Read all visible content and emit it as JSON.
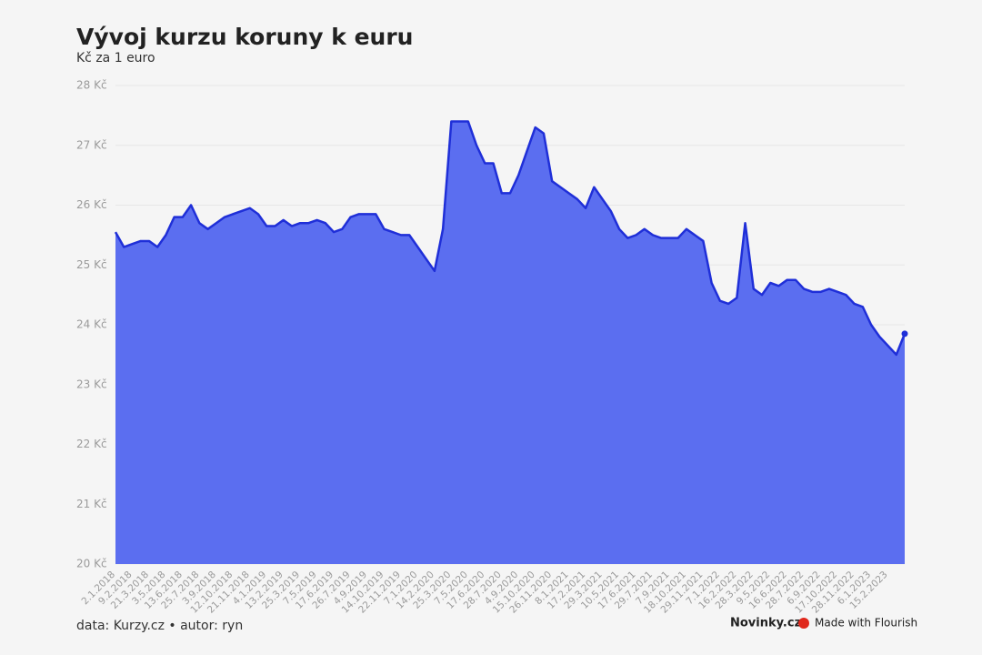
{
  "chart_data": {
    "type": "area",
    "title": "Vývoj kurzu koruny k euru",
    "subtitle": "Kč za 1 euro",
    "footer": "data: Kurzy.cz • autor: ryn",
    "brand": "Novinky.cz",
    "credit": "Made with Flourish",
    "color": "#5b6ef0",
    "line_color": "#1f2fd8",
    "grid": true,
    "ylim": [
      20,
      28
    ],
    "yticks": [
      {
        "value": 20,
        "label": "20 Kč"
      },
      {
        "value": 21,
        "label": "21 Kč"
      },
      {
        "value": 22,
        "label": "22 Kč"
      },
      {
        "value": 23,
        "label": "23 Kč"
      },
      {
        "value": 24,
        "label": "24 Kč"
      },
      {
        "value": 25,
        "label": "25 Kč"
      },
      {
        "value": 26,
        "label": "26 Kč"
      },
      {
        "value": 27,
        "label": "27 Kč"
      },
      {
        "value": 28,
        "label": "28 Kč"
      }
    ],
    "categories": [
      "2.1.2018",
      null,
      "9.2.2018",
      null,
      "21.3.2018",
      null,
      "3.5.2018",
      null,
      "13.6.2018",
      null,
      "25.7.2018",
      null,
      "3.9.2018",
      null,
      "12.10.2018",
      null,
      "21.11.2018",
      null,
      "4.1.2019",
      null,
      "13.2.2019",
      null,
      "25.3.2019",
      null,
      "7.5.2019",
      null,
      "17.6.2019",
      null,
      "26.7.2019",
      null,
      "4.9.2019",
      null,
      "14.10.2019",
      null,
      "22.11.2019",
      null,
      "7.1.2020",
      null,
      "14.2.2020",
      null,
      "25.3.2020",
      null,
      "7.5.2020",
      null,
      "17.6.2020",
      null,
      "28.7.2020",
      null,
      "4.9.2020",
      null,
      "15.10.2020",
      null,
      "26.11.2020",
      null,
      "8.1.2021",
      null,
      "17.2.2021",
      null,
      "29.3.2021",
      null,
      "10.5.2021",
      null,
      "17.6.2021",
      null,
      "29.7.2021",
      null,
      "7.9.2021",
      null,
      "18.10.2021",
      null,
      "29.11.2021",
      null,
      "7.1.2022",
      null,
      "16.2.2022",
      null,
      "28.3.2022",
      null,
      "9.5.2022",
      null,
      "16.6.2022",
      null,
      "28.7.2022",
      null,
      "6.9.2022",
      null,
      "17.10.2022",
      null,
      "28.11.2022",
      null,
      "6.1.2023",
      null,
      "15.2.2023",
      null,
      null
    ],
    "values": [
      25.55,
      25.3,
      25.35,
      25.4,
      25.4,
      25.3,
      25.5,
      25.8,
      25.8,
      26.0,
      25.7,
      25.6,
      25.7,
      25.8,
      25.85,
      25.9,
      25.95,
      25.85,
      25.65,
      25.65,
      25.75,
      25.65,
      25.7,
      25.7,
      25.75,
      25.7,
      25.55,
      25.6,
      25.8,
      25.85,
      25.85,
      25.85,
      25.6,
      25.55,
      25.5,
      25.5,
      25.3,
      25.1,
      24.9,
      25.6,
      27.4,
      27.4,
      27.4,
      27.0,
      26.7,
      26.7,
      26.2,
      26.2,
      26.5,
      26.9,
      27.3,
      27.2,
      26.4,
      26.3,
      26.2,
      26.1,
      25.95,
      26.3,
      26.1,
      25.9,
      25.6,
      25.45,
      25.5,
      25.6,
      25.5,
      25.45,
      25.45,
      25.45,
      25.6,
      25.5,
      25.4,
      24.7,
      24.4,
      24.35,
      24.45,
      25.7,
      24.6,
      24.5,
      24.7,
      24.65,
      24.75,
      24.75,
      24.6,
      24.55,
      24.55,
      24.6,
      24.55,
      24.5,
      24.35,
      24.3,
      24.0,
      23.8,
      23.65,
      23.5,
      23.85
    ]
  }
}
